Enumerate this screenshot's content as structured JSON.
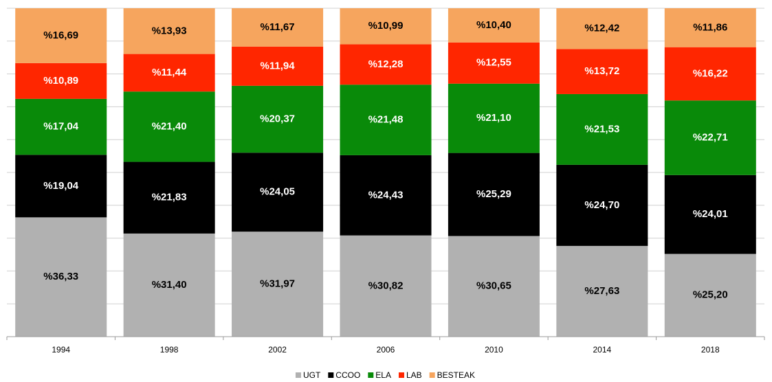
{
  "chart_data": {
    "type": "stacked_bar",
    "categories": [
      "1994",
      "1998",
      "2002",
      "2006",
      "2010",
      "2014",
      "2018"
    ],
    "series": [
      {
        "name": "UGT",
        "color": "#b1b1b1",
        "label_color": "#000000",
        "values": [
          36.33,
          31.4,
          31.97,
          30.82,
          30.65,
          27.63,
          25.2
        ],
        "value_labels": [
          "%36,33",
          "%31,40",
          "%31,97",
          "%30,82",
          "%30,65",
          "%27,63",
          "%25,20"
        ]
      },
      {
        "name": "CCOO",
        "color": "#000000",
        "label_color": "#ffffff",
        "values": [
          19.04,
          21.83,
          24.05,
          24.43,
          25.29,
          24.7,
          24.01
        ],
        "value_labels": [
          "%19,04",
          "%21,83",
          "%24,05",
          "%24,43",
          "%25,29",
          "%24,70",
          "%24,01"
        ]
      },
      {
        "name": "ELA",
        "color": "#098a09",
        "label_color": "#ffffff",
        "values": [
          17.04,
          21.4,
          20.37,
          21.48,
          21.1,
          21.53,
          22.71
        ],
        "value_labels": [
          "%17,04",
          "%21,40",
          "%20,37",
          "%21,48",
          "%21,10",
          "%21,53",
          "%22,71"
        ]
      },
      {
        "name": "LAB",
        "color": "#ff2600",
        "label_color": "#ffffff",
        "values": [
          10.89,
          11.44,
          11.94,
          12.28,
          12.55,
          13.72,
          16.22
        ],
        "value_labels": [
          "%10,89",
          "%11,44",
          "%11,94",
          "%12,28",
          "%12,55",
          "%13,72",
          "%16,22"
        ]
      },
      {
        "name": "BESTEAK",
        "color": "#f6a55e",
        "label_color": "#000000",
        "values": [
          16.69,
          13.93,
          11.67,
          10.99,
          10.4,
          12.42,
          11.86
        ],
        "value_labels": [
          "%16,69",
          "%13,93",
          "%11,67",
          "%10,99",
          "%10,40",
          "%12,42",
          "%11,86"
        ]
      }
    ],
    "ylim": [
      0,
      100
    ],
    "yticks": [
      0,
      10,
      20,
      30,
      40,
      50,
      60,
      70,
      80,
      90,
      100
    ],
    "grid": true,
    "legend": "bottom"
  }
}
